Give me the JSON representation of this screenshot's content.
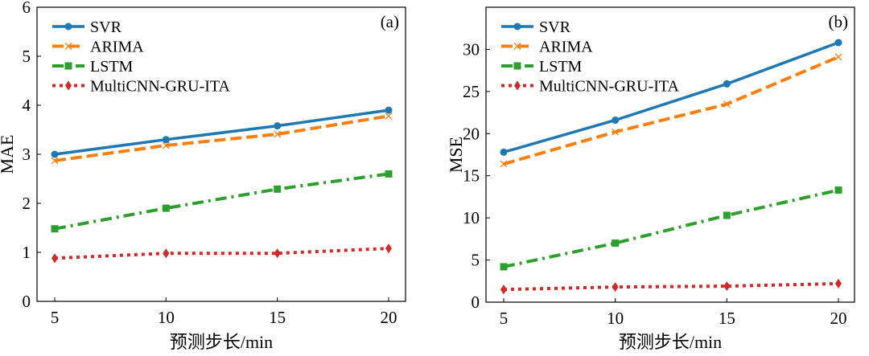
{
  "chart_data": [
    {
      "type": "line",
      "panel_label": "(a)",
      "xlabel": "预测步长/min",
      "ylabel": "MAE",
      "x": [
        5,
        10,
        15,
        20
      ],
      "xticks": [
        "5",
        "10",
        "15",
        "20"
      ],
      "yticks": [
        "0",
        "1",
        "2",
        "3",
        "4",
        "5",
        "6"
      ],
      "xlim": [
        4.45,
        21.2
      ],
      "ylim": [
        0,
        6
      ],
      "grid": false,
      "legend": "top-left",
      "series": [
        {
          "name": "SVR",
          "values": [
            3.0,
            3.3,
            3.58,
            3.9
          ],
          "color": "#1f77b4",
          "dash": "solid",
          "marker": "circle"
        },
        {
          "name": "ARIMA",
          "values": [
            2.87,
            3.18,
            3.41,
            3.78
          ],
          "color": "#ff7f0e",
          "dash": "dashed",
          "marker": "x"
        },
        {
          "name": "LSTM",
          "values": [
            1.48,
            1.9,
            2.29,
            2.6
          ],
          "color": "#2ca02c",
          "dash": "dashdot",
          "marker": "square"
        },
        {
          "name": "MultiCNN-GRU-ITA",
          "values": [
            0.88,
            0.98,
            0.98,
            1.08
          ],
          "color": "#d62728",
          "dash": "dotted",
          "marker": "diamond"
        }
      ]
    },
    {
      "type": "line",
      "panel_label": "(b)",
      "xlabel": "预测步长/min",
      "ylabel": "MSE",
      "x": [
        5,
        10,
        15,
        20
      ],
      "xticks": [
        "5",
        "10",
        "15",
        "20"
      ],
      "yticks": [
        "0",
        "5",
        "10",
        "15",
        "20",
        "25",
        "30"
      ],
      "xlim": [
        4.2,
        20.8
      ],
      "ylim": [
        0,
        35
      ],
      "grid": false,
      "legend": "top-left",
      "series": [
        {
          "name": "SVR",
          "values": [
            17.8,
            21.6,
            25.9,
            30.8
          ],
          "color": "#1f77b4",
          "dash": "solid",
          "marker": "circle"
        },
        {
          "name": "ARIMA",
          "values": [
            16.4,
            20.2,
            23.5,
            29.1
          ],
          "color": "#ff7f0e",
          "dash": "dashed",
          "marker": "x"
        },
        {
          "name": "LSTM",
          "values": [
            4.2,
            7.0,
            10.3,
            13.3
          ],
          "color": "#2ca02c",
          "dash": "dashdot",
          "marker": "square"
        },
        {
          "name": "MultiCNN-GRU-ITA",
          "values": [
            1.5,
            1.8,
            1.9,
            2.2
          ],
          "color": "#d62728",
          "dash": "dotted",
          "marker": "diamond"
        }
      ]
    }
  ]
}
